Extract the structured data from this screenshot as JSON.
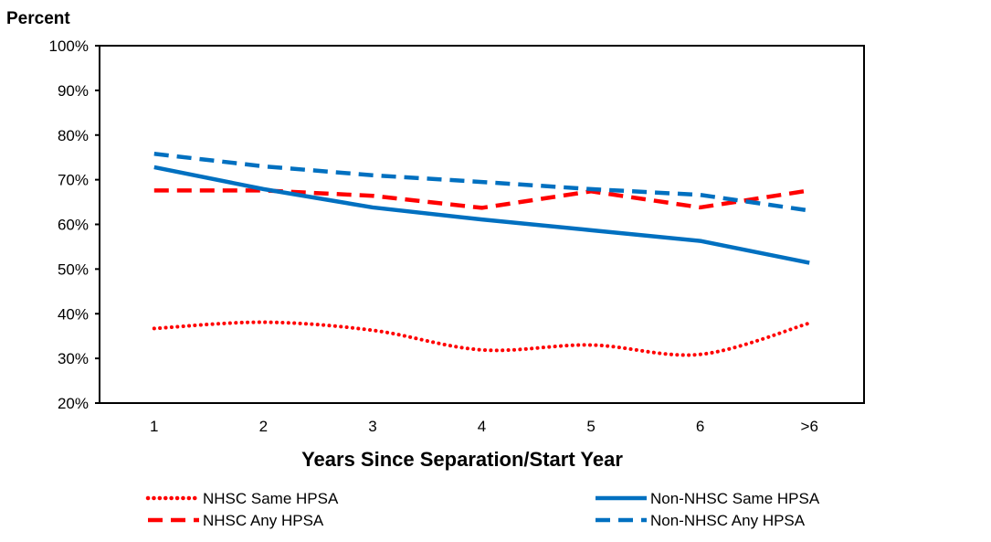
{
  "chart_data": {
    "type": "line",
    "ylabel": "Percent",
    "xlabel": "Years Since Separation/Start Year",
    "categories": [
      "1",
      "2",
      "3",
      "4",
      "5",
      "6",
      ">6"
    ],
    "ylim": [
      20,
      100
    ],
    "yticks": [
      20,
      30,
      40,
      50,
      60,
      70,
      80,
      90,
      100
    ],
    "ytick_labels": [
      "20%",
      "30%",
      "40%",
      "50%",
      "60%",
      "70%",
      "80%",
      "90%",
      "100%"
    ],
    "grid": false,
    "legend_position": "bottom",
    "series": [
      {
        "name": "NHSC Same HPSA",
        "color": "#FF0000",
        "style": "dotted",
        "values": [
          36.7,
          38.1,
          36.3,
          31.9,
          33.0,
          30.9,
          37.9
        ]
      },
      {
        "name": "NHSC Any HPSA",
        "color": "#FF0000",
        "style": "dashed",
        "values": [
          67.6,
          67.6,
          66.4,
          63.7,
          67.4,
          63.8,
          67.6
        ]
      },
      {
        "name": "Non-NHSC Same HPSA",
        "color": "#0070C0",
        "style": "solid",
        "values": [
          72.8,
          67.9,
          63.8,
          61.1,
          58.7,
          56.3,
          51.4
        ]
      },
      {
        "name": "Non-NHSC Any HPSA",
        "color": "#0070C0",
        "style": "dashed",
        "values": [
          75.8,
          73.0,
          71.0,
          69.5,
          67.9,
          66.6,
          63.1
        ]
      }
    ]
  }
}
